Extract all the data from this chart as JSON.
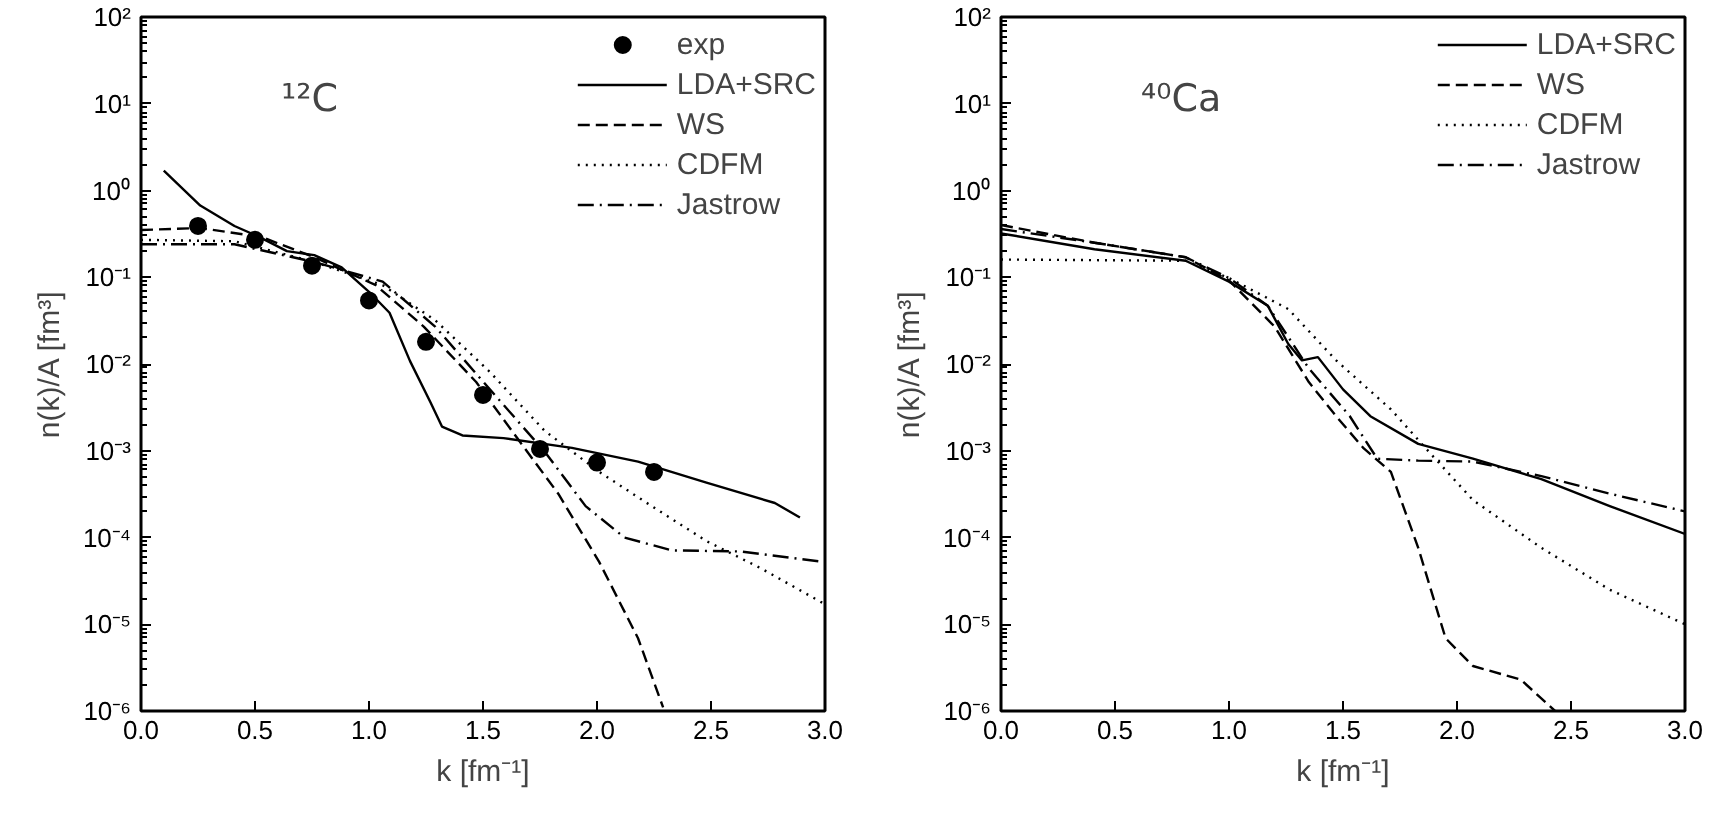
{
  "chart_data": [
    {
      "type": "line",
      "annotations": [
        "¹²C"
      ],
      "xlabel": "k [fm⁻¹]",
      "ylabel": "n(k)/A [fm³]",
      "log": "y",
      "grid": false,
      "legend": "top right",
      "xlim": [
        0,
        3
      ],
      "ylim": [
        1e-06,
        100
      ],
      "xticks": [
        {
          "value": 0,
          "label": "0.0"
        },
        {
          "value": 0.5,
          "label": "0.5"
        },
        {
          "value": 1,
          "label": "1.0"
        },
        {
          "value": 1.5,
          "label": "1.5"
        },
        {
          "value": 2,
          "label": "2.0"
        },
        {
          "value": 2.5,
          "label": "2.5"
        },
        {
          "value": 3,
          "label": "3.0"
        }
      ],
      "yticks": [
        {
          "value": 1e-06,
          "label": "10⁻⁶"
        },
        {
          "value": 1e-05,
          "label": "10⁻⁵"
        },
        {
          "value": 0.0001,
          "label": "10⁻⁴"
        },
        {
          "value": 0.001,
          "label": "10⁻³"
        },
        {
          "value": 0.01,
          "label": "10⁻²"
        },
        {
          "value": 0.1,
          "label": "10⁻¹"
        },
        {
          "value": 1,
          "label": "10⁰"
        },
        {
          "value": 10,
          "label": "10¹"
        },
        {
          "value": 100,
          "label": "10²"
        }
      ],
      "series": [
        {
          "name": "exp",
          "type": "scatter",
          "marker": "circle",
          "color": "#000000",
          "x": [
            0.25,
            0.5,
            0.75,
            1.0,
            1.25,
            1.5,
            1.75,
            2.0,
            2.25
          ],
          "values": [
            0.39,
            0.27,
            0.136,
            0.054,
            0.018,
            0.0044,
            0.00105,
            0.00073,
            0.00057
          ]
        },
        {
          "name": "LDA+SRC",
          "line_style": "solid",
          "color": "#000000",
          "x": [
            0.1,
            0.26,
            0.41,
            0.52,
            0.64,
            0.76,
            0.88,
            1.0,
            1.09,
            1.18,
            1.27,
            1.32,
            1.41,
            1.59,
            1.89,
            2.18,
            2.48,
            2.78,
            2.89
          ],
          "values": [
            1.69,
            0.67,
            0.39,
            0.29,
            0.2,
            0.18,
            0.13,
            0.068,
            0.039,
            0.0108,
            0.0036,
            0.0019,
            0.0015,
            0.0014,
            0.00108,
            0.00075,
            0.00043,
            0.00025,
            0.00017
          ]
        },
        {
          "name": "WS",
          "line_style": "dashed",
          "color": "#000000",
          "x": [
            0,
            0.26,
            0.53,
            0.76,
            1.03,
            1.24,
            1.47,
            1.65,
            1.83,
            2.01,
            2.18,
            2.29
          ],
          "values": [
            0.35,
            0.37,
            0.29,
            0.17,
            0.081,
            0.027,
            0.0062,
            0.0014,
            0.00032,
            5.2e-05,
            6.9e-06,
            1.1e-06
          ]
        },
        {
          "name": "CDFM",
          "line_style": "dotted",
          "color": "#000000",
          "x": [
            0,
            0.41,
            0.76,
            1.06,
            1.29,
            1.53,
            1.77,
            2.01,
            2.24,
            2.48,
            2.72,
            3.0
          ],
          "values": [
            0.27,
            0.26,
            0.15,
            0.081,
            0.032,
            0.0081,
            0.0017,
            0.00057,
            0.00023,
            9.1e-05,
            4.4e-05,
            1.7e-05
          ]
        },
        {
          "name": "Jastrow",
          "line_style": "dashdot",
          "color": "#000000",
          "x": [
            0,
            0.41,
            0.76,
            1.06,
            1.29,
            1.53,
            1.77,
            1.95,
            2.12,
            2.33,
            2.63,
            3.0
          ],
          "values": [
            0.24,
            0.24,
            0.15,
            0.089,
            0.027,
            0.0051,
            0.00098,
            0.00023,
            0.0001,
            7.1e-05,
            6.9e-05,
            5.2e-05
          ]
        }
      ]
    },
    {
      "type": "line",
      "annotations": [
        "⁴⁰Ca"
      ],
      "xlabel": "k [fm⁻¹]",
      "ylabel": "n(k)/A [fm³]",
      "log": "y",
      "grid": false,
      "legend": "top right",
      "xlim": [
        0,
        3
      ],
      "ylim": [
        1e-06,
        100
      ],
      "xticks": [
        {
          "value": 0,
          "label": "0.0"
        },
        {
          "value": 0.5,
          "label": "0.5"
        },
        {
          "value": 1,
          "label": "1.0"
        },
        {
          "value": 1.5,
          "label": "1.5"
        },
        {
          "value": 2,
          "label": "2.0"
        },
        {
          "value": 2.5,
          "label": "2.5"
        },
        {
          "value": 3,
          "label": "3.0"
        }
      ],
      "yticks": [
        {
          "value": 1e-06,
          "label": "10⁻⁶"
        },
        {
          "value": 1e-05,
          "label": "10⁻⁵"
        },
        {
          "value": 0.0001,
          "label": "10⁻⁴"
        },
        {
          "value": 0.001,
          "label": "10⁻³"
        },
        {
          "value": 0.01,
          "label": "10⁻²"
        },
        {
          "value": 0.1,
          "label": "10⁻¹"
        },
        {
          "value": 1,
          "label": "10⁰"
        },
        {
          "value": 10,
          "label": "10¹"
        },
        {
          "value": 100,
          "label": "10²"
        }
      ],
      "series": [
        {
          "name": "LDA+SRC",
          "line_style": "solid",
          "color": "#000000",
          "x": [
            0,
            0.41,
            0.81,
            1.0,
            1.17,
            1.26,
            1.32,
            1.39,
            1.5,
            1.62,
            1.83,
            2.07,
            2.37,
            2.67,
            3.0
          ],
          "values": [
            0.32,
            0.21,
            0.155,
            0.089,
            0.047,
            0.017,
            0.011,
            0.012,
            0.0051,
            0.0025,
            0.0012,
            0.00081,
            0.00047,
            0.00023,
            0.00011
          ]
        },
        {
          "name": "WS",
          "line_style": "dashed",
          "color": "#000000",
          "x": [
            0,
            0.41,
            0.81,
            1.0,
            1.2,
            1.35,
            1.47,
            1.59,
            1.71,
            1.83,
            1.95,
            2.07,
            2.28,
            2.43
          ],
          "values": [
            0.4,
            0.25,
            0.17,
            0.092,
            0.027,
            0.0062,
            0.0025,
            0.00107,
            0.00057,
            7.6e-05,
            6.9e-06,
            3.3e-06,
            2.3e-06,
            1e-06
          ]
        },
        {
          "name": "CDFM",
          "line_style": "dotted",
          "color": "#000000",
          "x": [
            0,
            0.81,
            1.0,
            1.26,
            1.47,
            1.71,
            1.89,
            2.07,
            2.37,
            2.67,
            3.0
          ],
          "values": [
            0.16,
            0.155,
            0.098,
            0.043,
            0.011,
            0.003,
            0.00089,
            0.00027,
            7.6e-05,
            2.5e-05,
            1e-05
          ]
        },
        {
          "name": "Jastrow",
          "line_style": "dashdot",
          "color": "#000000",
          "x": [
            0,
            0.41,
            0.81,
            1.0,
            1.17,
            1.35,
            1.53,
            1.65,
            1.83,
            2.07,
            2.37,
            2.67,
            3.0
          ],
          "values": [
            0.36,
            0.25,
            0.17,
            0.098,
            0.047,
            0.0089,
            0.0025,
            0.00081,
            0.00077,
            0.00075,
            0.00051,
            0.00032,
            0.0002
          ]
        }
      ]
    }
  ]
}
